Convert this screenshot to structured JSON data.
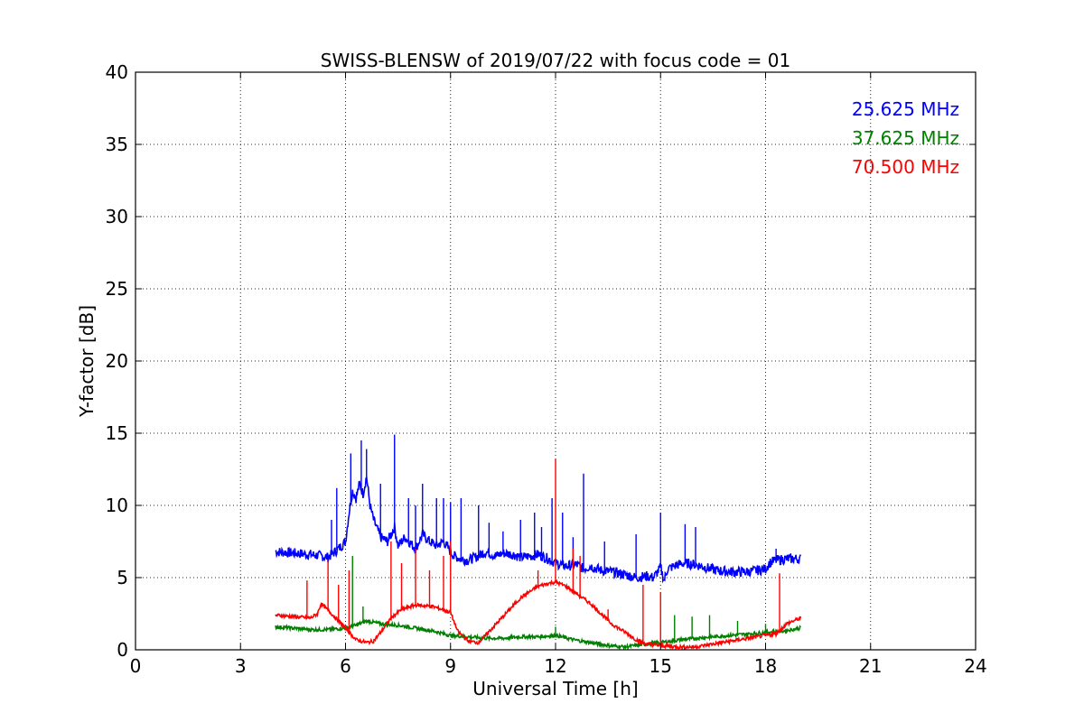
{
  "chart_data": {
    "type": "line",
    "title": "SWISS-BLENSW of 2019/07/22 with focus code = 01",
    "xlabel": "Universal Time [h]",
    "ylabel": "Y-factor [dB]",
    "xlim": [
      0,
      24
    ],
    "ylim": [
      0,
      40
    ],
    "xticks": [
      0,
      3,
      6,
      9,
      12,
      15,
      18,
      21,
      24
    ],
    "yticks": [
      0,
      5,
      10,
      15,
      20,
      25,
      30,
      35,
      40
    ],
    "grid": true,
    "legend_placement": "top-right",
    "series": [
      {
        "name": "25.625 MHz",
        "color": "#0000ff",
        "x": [
          4.0,
          4.5,
          5.0,
          5.3,
          5.5,
          5.6,
          5.8,
          6.0,
          6.1,
          6.2,
          6.3,
          6.4,
          6.5,
          6.6,
          6.7,
          6.8,
          7.0,
          7.2,
          7.4,
          7.5,
          7.7,
          8.0,
          8.2,
          8.4,
          8.6,
          8.8,
          9.0,
          9.1,
          9.3,
          9.5,
          9.8,
          10.0,
          10.3,
          10.5,
          10.8,
          11.0,
          11.3,
          11.5,
          11.8,
          12.0,
          12.3,
          12.6,
          12.8,
          13.0,
          13.3,
          13.6,
          14.0,
          14.3,
          14.6,
          14.8,
          15.0,
          15.1,
          15.2,
          15.5,
          15.7,
          16.0,
          16.3,
          16.6,
          17.0,
          17.5,
          18.0,
          18.1,
          18.3,
          18.6,
          19.0
        ],
        "values": [
          6.8,
          6.7,
          6.6,
          6.5,
          6.4,
          6.6,
          7.0,
          7.5,
          9.5,
          11.0,
          10.5,
          11.5,
          10.8,
          12.0,
          10.0,
          9.0,
          7.8,
          7.5,
          8.5,
          7.2,
          7.8,
          7.0,
          8.0,
          7.5,
          7.2,
          7.5,
          6.8,
          6.5,
          6.3,
          6.2,
          6.5,
          6.8,
          6.5,
          6.7,
          6.6,
          6.4,
          6.5,
          6.6,
          6.3,
          6.0,
          5.8,
          5.9,
          5.6,
          5.8,
          5.5,
          5.4,
          5.2,
          5.0,
          5.1,
          5.0,
          5.7,
          4.8,
          5.6,
          5.9,
          6.0,
          5.9,
          5.7,
          5.5,
          5.4,
          5.4,
          5.6,
          6.0,
          6.2,
          6.3,
          6.3
        ],
        "spikes": [
          {
            "x": 5.6,
            "value": 9.0
          },
          {
            "x": 5.75,
            "value": 11.2
          },
          {
            "x": 6.15,
            "value": 13.6
          },
          {
            "x": 6.45,
            "value": 14.5
          },
          {
            "x": 6.6,
            "value": 13.9
          },
          {
            "x": 7.0,
            "value": 11.5
          },
          {
            "x": 7.4,
            "value": 14.9
          },
          {
            "x": 7.8,
            "value": 10.5
          },
          {
            "x": 8.0,
            "value": 10.0
          },
          {
            "x": 8.2,
            "value": 11.5
          },
          {
            "x": 8.6,
            "value": 10.5
          },
          {
            "x": 8.8,
            "value": 10.5
          },
          {
            "x": 9.0,
            "value": 10.2
          },
          {
            "x": 9.3,
            "value": 10.5
          },
          {
            "x": 9.8,
            "value": 10.0
          },
          {
            "x": 10.1,
            "value": 8.8
          },
          {
            "x": 10.5,
            "value": 8.2
          },
          {
            "x": 11.0,
            "value": 9.0
          },
          {
            "x": 11.4,
            "value": 9.5
          },
          {
            "x": 11.6,
            "value": 8.5
          },
          {
            "x": 11.9,
            "value": 10.5
          },
          {
            "x": 12.2,
            "value": 9.5
          },
          {
            "x": 12.5,
            "value": 7.8
          },
          {
            "x": 12.8,
            "value": 12.2
          },
          {
            "x": 13.4,
            "value": 7.5
          },
          {
            "x": 14.3,
            "value": 8.0
          },
          {
            "x": 15.0,
            "value": 9.5
          },
          {
            "x": 15.7,
            "value": 8.7
          },
          {
            "x": 16.0,
            "value": 8.5
          },
          {
            "x": 18.3,
            "value": 7.0
          }
        ]
      },
      {
        "name": "37.625 MHz",
        "color": "#008000",
        "x": [
          4.0,
          4.5,
          5.0,
          5.5,
          6.0,
          6.3,
          6.6,
          7.0,
          7.5,
          8.0,
          8.5,
          9.0,
          9.5,
          10.0,
          10.5,
          11.0,
          11.5,
          12.0,
          12.5,
          13.0,
          13.5,
          14.0,
          14.3,
          14.6,
          15.0,
          15.3,
          15.6,
          16.0,
          16.5,
          17.0,
          17.5,
          18.0,
          18.5,
          19.0
        ],
        "values": [
          1.6,
          1.5,
          1.4,
          1.4,
          1.5,
          1.7,
          2.0,
          1.8,
          1.7,
          1.5,
          1.3,
          1.0,
          0.9,
          0.8,
          0.8,
          0.9,
          0.9,
          1.0,
          0.7,
          0.5,
          0.3,
          0.2,
          0.3,
          0.4,
          0.5,
          0.6,
          0.7,
          0.8,
          0.9,
          1.0,
          1.1,
          1.2,
          1.3,
          1.5
        ],
        "spikes": [
          {
            "x": 6.2,
            "value": 6.5
          },
          {
            "x": 6.5,
            "value": 3.0
          },
          {
            "x": 12.0,
            "value": 1.6
          },
          {
            "x": 15.4,
            "value": 2.4
          },
          {
            "x": 15.9,
            "value": 2.3
          },
          {
            "x": 16.4,
            "value": 2.4
          },
          {
            "x": 17.2,
            "value": 2.0
          },
          {
            "x": 18.0,
            "value": 1.8
          }
        ]
      },
      {
        "name": "70.500 MHz",
        "color": "#ff0000",
        "x": [
          4.0,
          4.5,
          5.0,
          5.2,
          5.3,
          5.6,
          6.0,
          6.3,
          6.6,
          6.8,
          7.0,
          7.3,
          7.6,
          8.0,
          8.5,
          9.0,
          9.2,
          9.5,
          9.8,
          10.0,
          10.5,
          11.0,
          11.5,
          11.8,
          12.0,
          12.3,
          12.6,
          13.0,
          13.3,
          13.6,
          14.0,
          14.3,
          14.6,
          15.0,
          15.5,
          16.0,
          16.5,
          17.0,
          17.5,
          18.0,
          18.3,
          18.6,
          19.0
        ],
        "values": [
          2.4,
          2.3,
          2.2,
          2.5,
          3.2,
          2.5,
          1.5,
          0.7,
          0.5,
          0.6,
          1.2,
          2.2,
          2.8,
          3.1,
          3.0,
          2.6,
          1.3,
          0.6,
          0.5,
          1.0,
          2.3,
          3.6,
          4.4,
          4.6,
          4.7,
          4.4,
          3.9,
          3.2,
          2.5,
          1.8,
          1.2,
          0.7,
          0.4,
          0.3,
          0.2,
          0.2,
          0.4,
          0.6,
          0.8,
          1.0,
          1.1,
          1.8,
          2.2
        ],
        "spikes": [
          {
            "x": 4.9,
            "value": 4.8
          },
          {
            "x": 5.5,
            "value": 6.2
          },
          {
            "x": 5.8,
            "value": 4.5
          },
          {
            "x": 6.1,
            "value": 5.5
          },
          {
            "x": 7.3,
            "value": 7.5
          },
          {
            "x": 7.6,
            "value": 6.0
          },
          {
            "x": 8.0,
            "value": 7.0
          },
          {
            "x": 8.4,
            "value": 5.5
          },
          {
            "x": 8.8,
            "value": 6.5
          },
          {
            "x": 9.0,
            "value": 7.5
          },
          {
            "x": 11.5,
            "value": 5.5
          },
          {
            "x": 12.0,
            "value": 13.2
          },
          {
            "x": 12.5,
            "value": 7.0
          },
          {
            "x": 12.7,
            "value": 6.5
          },
          {
            "x": 13.5,
            "value": 2.8
          },
          {
            "x": 14.5,
            "value": 4.5
          },
          {
            "x": 15.0,
            "value": 4.0
          },
          {
            "x": 18.4,
            "value": 5.3
          }
        ]
      }
    ]
  }
}
